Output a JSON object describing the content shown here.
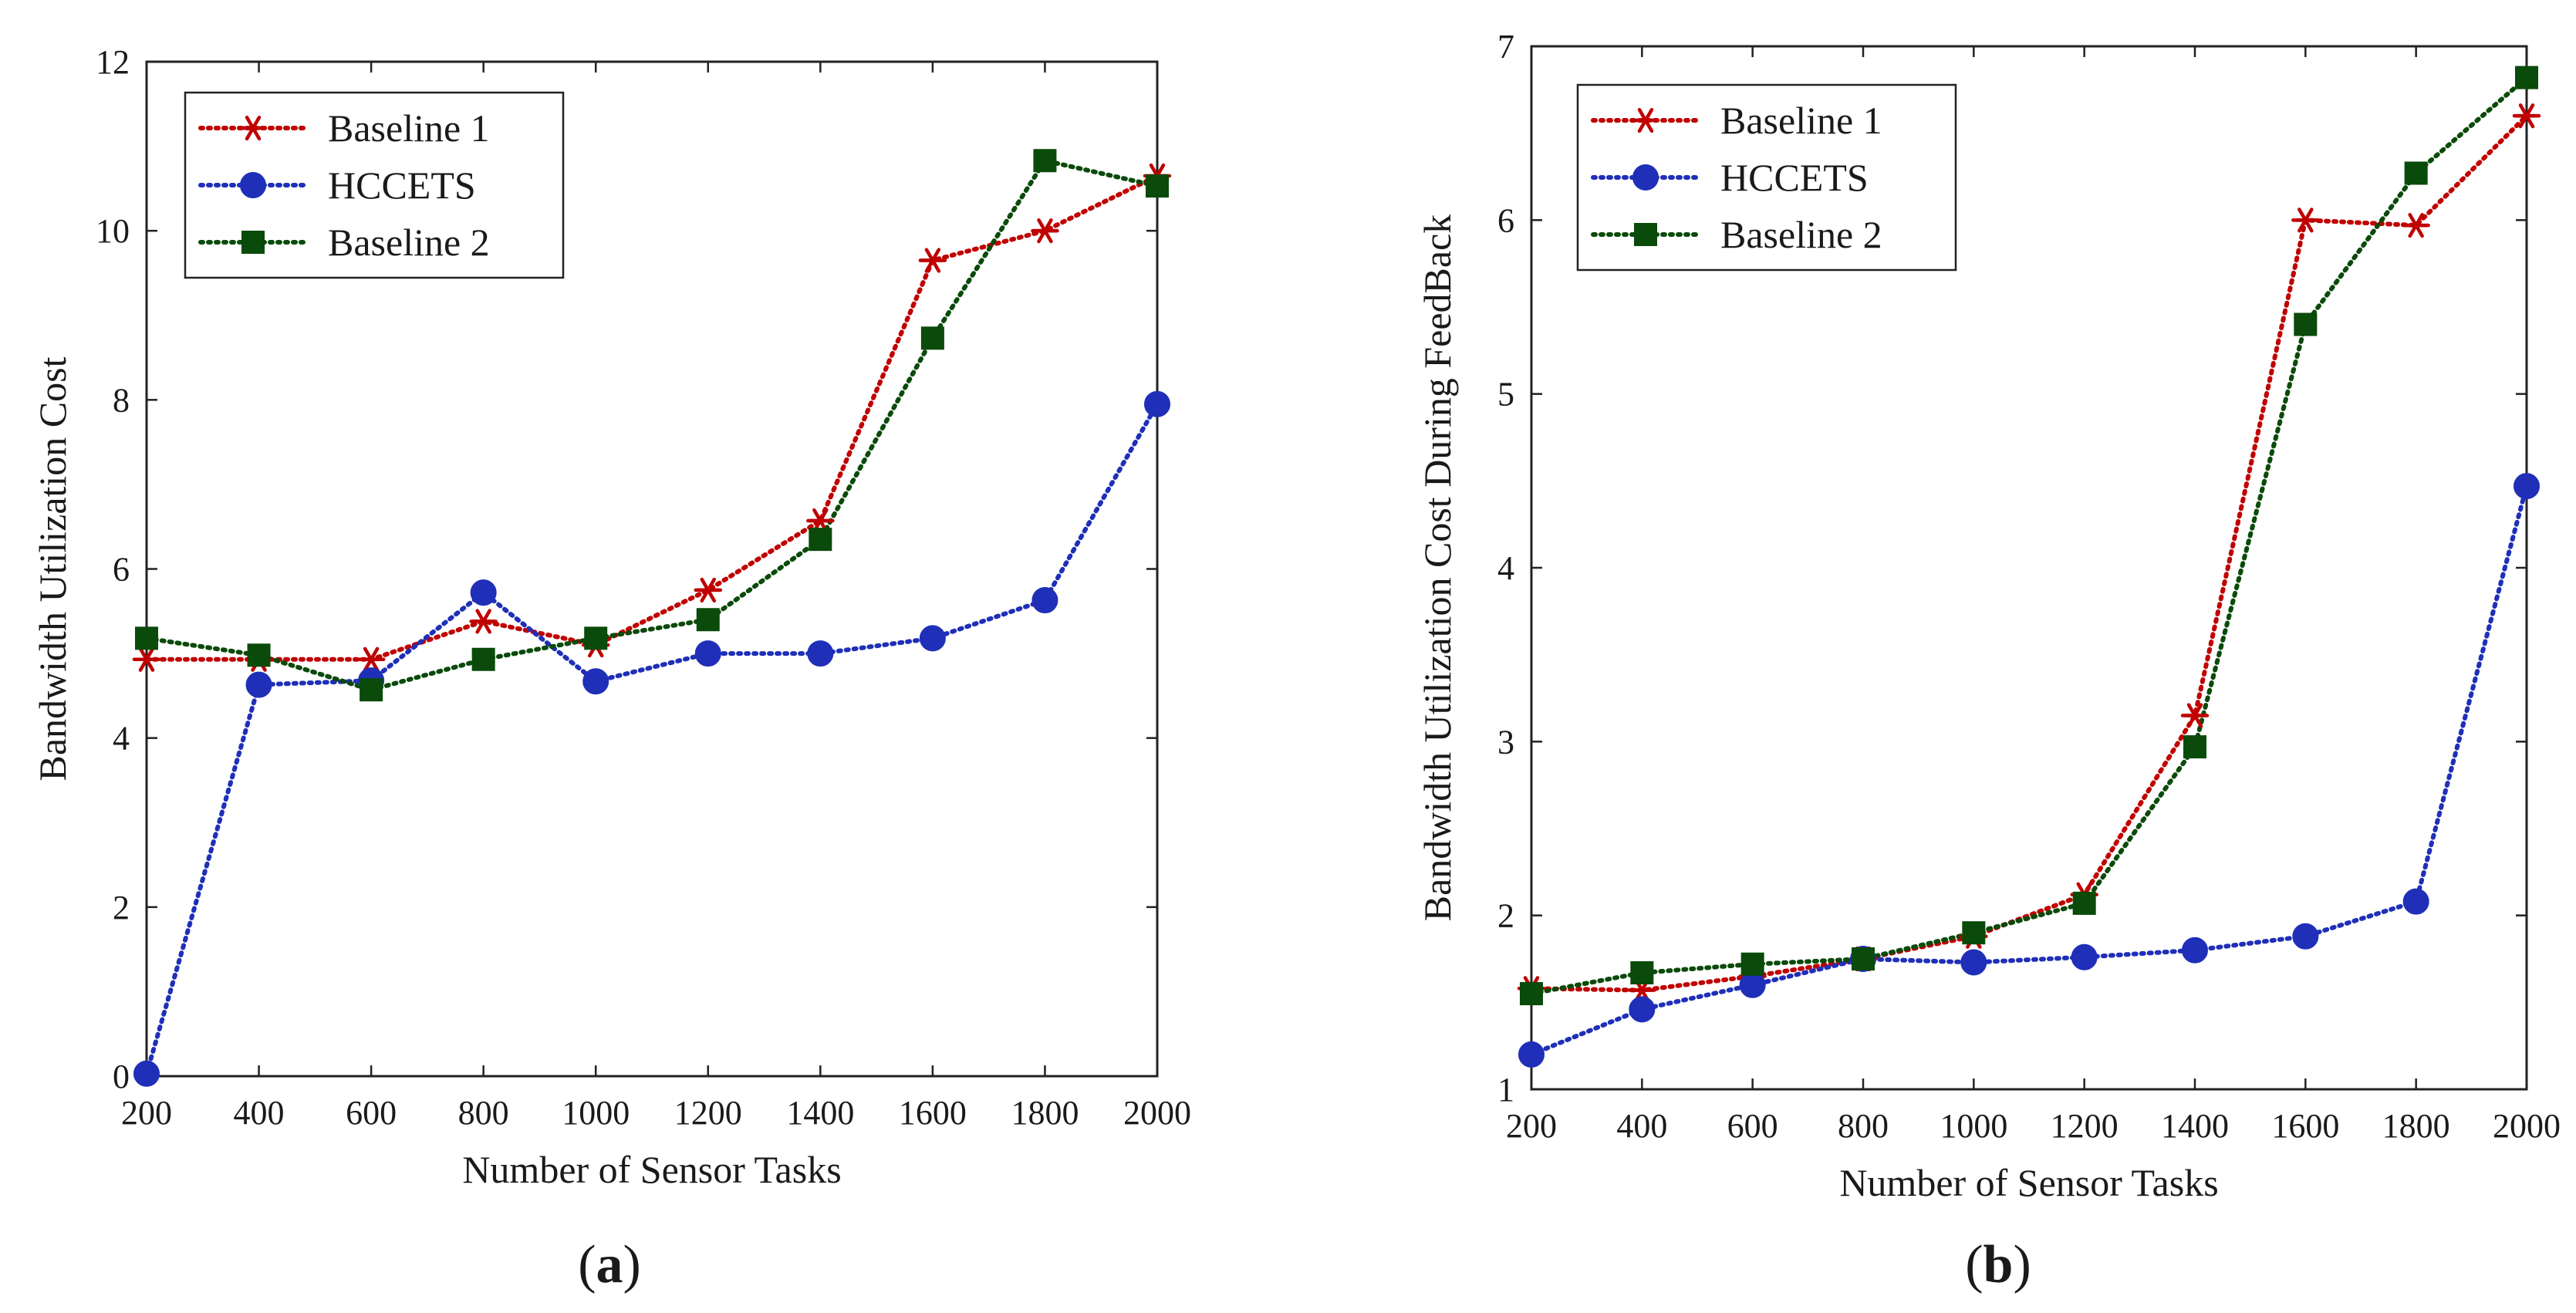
{
  "chart_data": [
    {
      "type": "line",
      "panel_label": "(a)",
      "panel_label_letter": "a",
      "xlabel": "Number of Sensor Tasks",
      "ylabel": "Bandwidth Utilization Cost",
      "xlim": [
        200,
        2000
      ],
      "ylim": [
        0,
        12
      ],
      "xticks": [
        200,
        400,
        600,
        800,
        1000,
        1200,
        1400,
        1600,
        1800,
        2000
      ],
      "yticks": [
        0,
        2,
        4,
        6,
        8,
        10,
        12
      ],
      "legend_position": "top-left",
      "x": [
        200,
        400,
        600,
        800,
        1000,
        1200,
        1400,
        1600,
        1800,
        2000
      ],
      "series": [
        {
          "name": "Baseline 1",
          "color": "#c00000",
          "marker": "asterisk",
          "values": [
            4.93,
            4.93,
            4.93,
            5.38,
            5.1,
            5.75,
            6.57,
            9.65,
            10.0,
            10.65
          ]
        },
        {
          "name": "HCCETS",
          "color": "#1f2fb8",
          "marker": "circle",
          "values": [
            0.03,
            4.63,
            4.68,
            5.72,
            4.67,
            5.0,
            5.0,
            5.18,
            5.63,
            7.95
          ]
        },
        {
          "name": "Baseline 2",
          "color": "#0a4a0a",
          "marker": "square",
          "values": [
            5.18,
            4.98,
            4.57,
            4.93,
            5.18,
            5.4,
            6.35,
            8.73,
            10.83,
            10.53
          ]
        }
      ]
    },
    {
      "type": "line",
      "panel_label": "(b)",
      "panel_label_letter": "b",
      "xlabel": "Number of Sensor Tasks",
      "ylabel": "Bandwidth Utilization Cost During FeedBack",
      "xlim": [
        200,
        2000
      ],
      "ylim": [
        1,
        7
      ],
      "xticks": [
        200,
        400,
        600,
        800,
        1000,
        1200,
        1400,
        1600,
        1800,
        2000
      ],
      "yticks": [
        1,
        2,
        3,
        4,
        5,
        6,
        7
      ],
      "legend_position": "top-left",
      "x": [
        200,
        400,
        600,
        800,
        1000,
        1200,
        1400,
        1600,
        1800,
        2000
      ],
      "series": [
        {
          "name": "Baseline 1",
          "color": "#c00000",
          "marker": "asterisk",
          "values": [
            1.58,
            1.57,
            1.65,
            1.75,
            1.88,
            2.12,
            3.15,
            6.0,
            5.97,
            6.6
          ]
        },
        {
          "name": "HCCETS",
          "color": "#1f2fb8",
          "marker": "circle",
          "values": [
            1.2,
            1.46,
            1.6,
            1.75,
            1.73,
            1.76,
            1.8,
            1.88,
            2.08,
            4.47
          ]
        },
        {
          "name": "Baseline 2",
          "color": "#0a4a0a",
          "marker": "square",
          "values": [
            1.55,
            1.67,
            1.72,
            1.75,
            1.9,
            2.07,
            2.97,
            5.4,
            6.27,
            6.82
          ]
        }
      ]
    }
  ]
}
